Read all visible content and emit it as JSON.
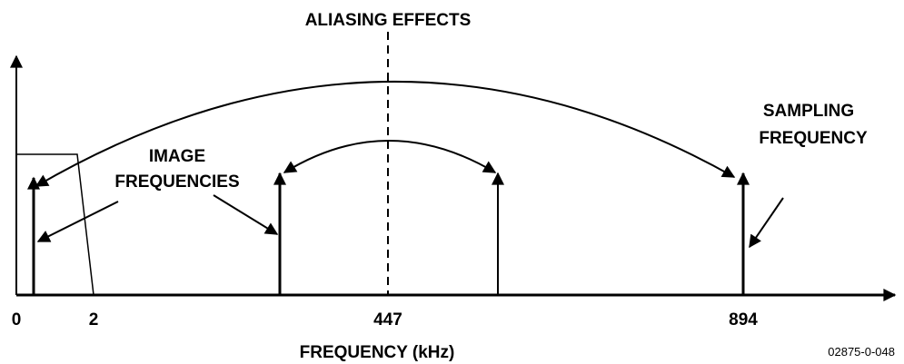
{
  "title": "ALIASING EFFECTS",
  "labels": {
    "image": [
      "IMAGE",
      "FREQUENCIES"
    ],
    "sampling": [
      "SAMPLING",
      "FREQUENCY"
    ]
  },
  "axis": {
    "ticks": [
      0,
      2,
      447,
      894
    ],
    "label": "FREQUENCY (kHz)"
  },
  "figure_id": "02875-0-048"
}
